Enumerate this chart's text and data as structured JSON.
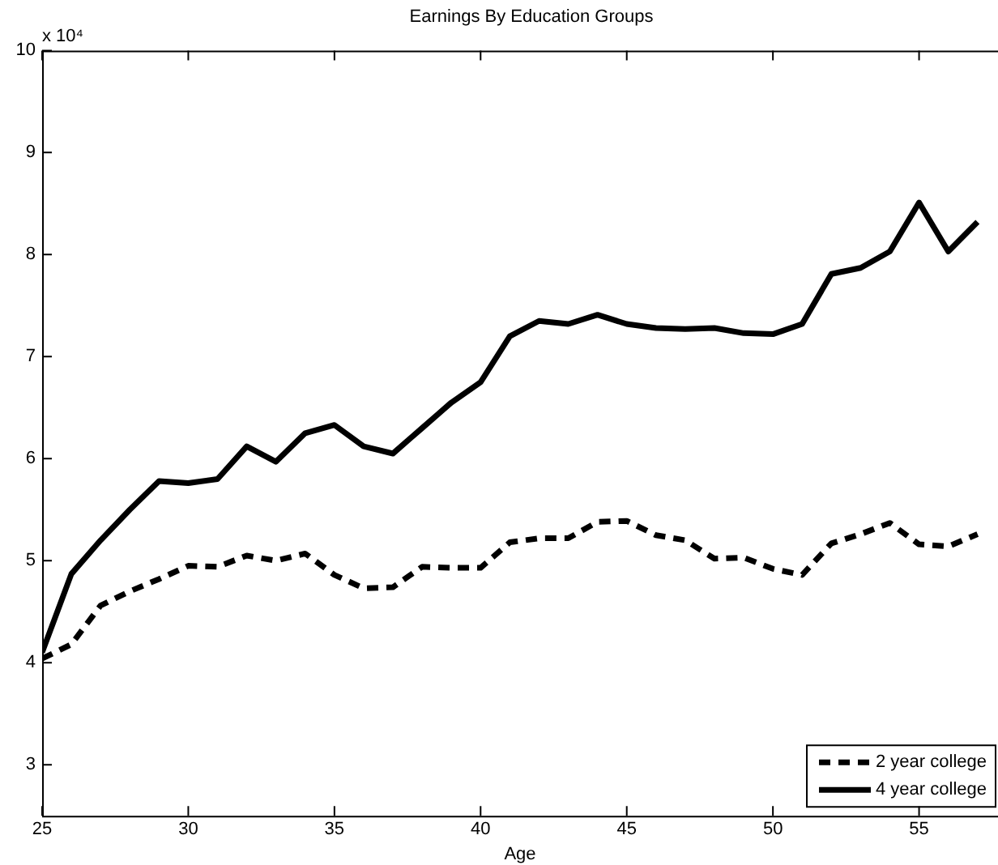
{
  "chart_data": {
    "type": "line",
    "title": "Earnings By Education Groups",
    "xlabel": "Age",
    "annotations": [
      "x 10⁴"
    ],
    "x": [
      25,
      26,
      27,
      28,
      29,
      30,
      31,
      32,
      33,
      34,
      35,
      36,
      37,
      38,
      39,
      40,
      41,
      42,
      43,
      44,
      45,
      46,
      47,
      48,
      49,
      50,
      51,
      52,
      53,
      54,
      55,
      56,
      57
    ],
    "series": [
      {
        "name": "2 year college",
        "color": "#000000",
        "line_style": "dashed",
        "values": [
          4.04,
          4.18,
          4.56,
          4.7,
          4.82,
          4.95,
          4.94,
          5.05,
          5.0,
          5.07,
          4.86,
          4.73,
          4.74,
          4.94,
          4.93,
          4.93,
          5.18,
          5.22,
          5.22,
          5.38,
          5.39,
          5.25,
          5.2,
          5.02,
          5.03,
          4.92,
          4.86,
          5.17,
          5.26,
          5.37,
          5.16,
          5.14,
          5.26
        ]
      },
      {
        "name": "4 year college",
        "color": "#000000",
        "line_style": "solid",
        "values": [
          4.1,
          4.87,
          5.2,
          5.5,
          5.78,
          5.76,
          5.8,
          6.12,
          5.97,
          6.25,
          6.33,
          6.12,
          6.05,
          6.3,
          6.55,
          6.75,
          7.2,
          7.35,
          7.32,
          7.41,
          7.32,
          7.28,
          7.27,
          7.28,
          7.23,
          7.22,
          7.32,
          7.81,
          7.87,
          8.03,
          8.51,
          8.03,
          8.32
        ]
      }
    ],
    "xlim": [
      25,
      57.7
    ],
    "xticks": [
      25,
      30,
      35,
      40,
      45,
      50,
      55
    ],
    "ylim": [
      2.5,
      10
    ],
    "yticks": [
      3,
      4,
      5,
      6,
      7,
      8,
      9,
      10
    ],
    "grid": false,
    "legend": "bottom right",
    "marker": "none"
  }
}
